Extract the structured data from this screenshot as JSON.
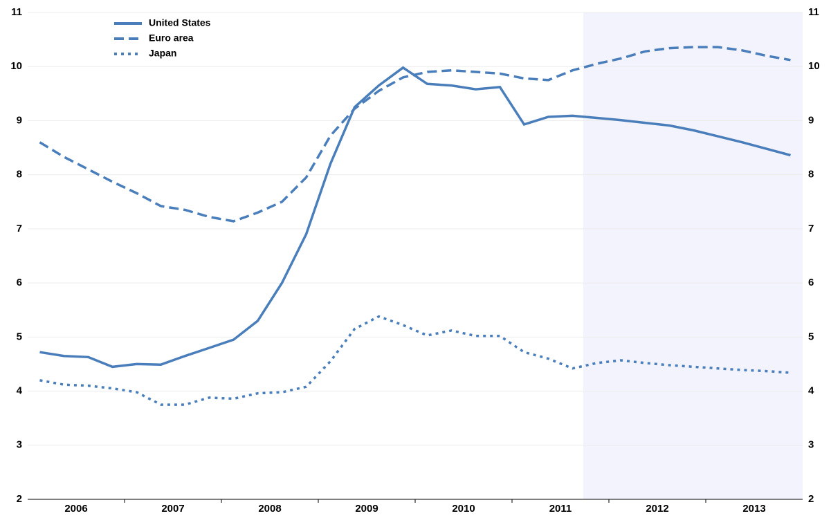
{
  "chart_data": {
    "type": "line",
    "x": [
      2006.125,
      2006.375,
      2006.625,
      2006.875,
      2007.125,
      2007.375,
      2007.625,
      2007.875,
      2008.125,
      2008.375,
      2008.625,
      2008.875,
      2009.125,
      2009.375,
      2009.625,
      2009.875,
      2010.125,
      2010.375,
      2010.625,
      2010.875,
      2011.125,
      2011.375,
      2011.625,
      2011.875,
      2012.125,
      2012.375,
      2012.625,
      2012.875,
      2013.125,
      2013.375,
      2013.625,
      2013.875
    ],
    "xlim": [
      2006,
      2014
    ],
    "xticks": [
      {
        "value": 2006.5,
        "label": "2006"
      },
      {
        "value": 2007.5,
        "label": "2007"
      },
      {
        "value": 2008.5,
        "label": "2008"
      },
      {
        "value": 2009.5,
        "label": "2009"
      },
      {
        "value": 2010.5,
        "label": "2010"
      },
      {
        "value": 2011.5,
        "label": "2011"
      },
      {
        "value": 2012.5,
        "label": "2012"
      },
      {
        "value": 2013.5,
        "label": "2013"
      }
    ],
    "ylim": [
      2,
      11
    ],
    "yticks": [
      2,
      3,
      4,
      5,
      6,
      7,
      8,
      9,
      10,
      11
    ],
    "grid": true,
    "series": [
      {
        "name": "United States",
        "color": "#4a7ebb",
        "line_style": "solid",
        "values": [
          4.72,
          4.65,
          4.63,
          4.45,
          4.5,
          4.49,
          4.65,
          4.8,
          4.95,
          5.3,
          6.0,
          6.9,
          8.2,
          9.25,
          9.65,
          9.98,
          9.68,
          9.65,
          9.58,
          9.62,
          8.93,
          9.07,
          9.09,
          9.05,
          9.01,
          8.96,
          8.91,
          8.82,
          8.71,
          8.6,
          8.48,
          8.36
        ]
      },
      {
        "name": "Euro area",
        "color": "#4a7ebb",
        "line_style": "dashed",
        "values": [
          8.6,
          8.33,
          8.1,
          7.87,
          7.66,
          7.42,
          7.35,
          7.22,
          7.14,
          7.3,
          7.5,
          7.95,
          8.72,
          9.22,
          9.55,
          9.8,
          9.9,
          9.93,
          9.9,
          9.87,
          9.78,
          9.75,
          9.93,
          10.05,
          10.15,
          10.28,
          10.34,
          10.36,
          10.36,
          10.3,
          10.2,
          10.12
        ]
      },
      {
        "name": "Japan",
        "color": "#4a7ebb",
        "line_style": "dotted",
        "values": [
          4.2,
          4.12,
          4.1,
          4.05,
          3.98,
          3.75,
          3.75,
          3.88,
          3.86,
          3.96,
          3.98,
          4.08,
          4.55,
          5.15,
          5.38,
          5.22,
          5.03,
          5.12,
          5.02,
          5.02,
          4.72,
          4.6,
          4.42,
          4.52,
          4.57,
          4.52,
          4.48,
          4.45,
          4.42,
          4.39,
          4.37,
          4.34
        ]
      }
    ]
  }
}
